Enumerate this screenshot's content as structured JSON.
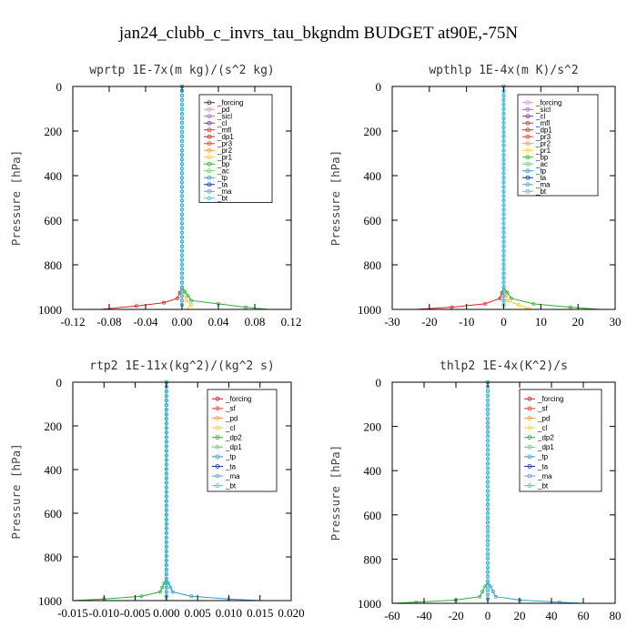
{
  "figure": {
    "title": "jan24_clubb_c_invrs_tau_bkgndm  BUDGET at90E,-75N"
  },
  "chart_data": [
    {
      "type": "line",
      "title": "wprtp  1E-7x(m kg)/(s^2 kg)",
      "ylabel": "Pressure [hPa]",
      "xlim": [
        -0.12,
        0.12
      ],
      "ylim": [
        1000,
        0
      ],
      "xticks": [
        "-0.12",
        "-0.08",
        "-0.04",
        "0.00",
        "0.04",
        "0.08",
        "0.12"
      ],
      "yticks": [
        "0",
        "200",
        "400",
        "600",
        "800",
        "1000"
      ],
      "legend_position": "top-right",
      "series": [
        {
          "name": "_forcing",
          "color": "#333333",
          "pressure": [
            0,
            900,
            960,
            980,
            1000
          ],
          "values": [
            0,
            0,
            0,
            0,
            0
          ]
        },
        {
          "name": "_pd",
          "color": "#cc99cc",
          "pressure": [
            0,
            900,
            1000
          ],
          "values": [
            0,
            0,
            0
          ]
        },
        {
          "name": "_sicl",
          "color": "#9966cc",
          "pressure": [
            0,
            900,
            1000
          ],
          "values": [
            0,
            0,
            0
          ]
        },
        {
          "name": "_cl",
          "color": "#663399",
          "pressure": [
            0,
            900,
            1000
          ],
          "values": [
            0,
            0,
            0
          ]
        },
        {
          "name": "_mfl",
          "color": "#cc3333",
          "pressure": [
            0,
            900,
            1000
          ],
          "values": [
            0,
            0,
            0
          ]
        },
        {
          "name": "_dp1",
          "color": "#dd2222",
          "pressure": [
            0,
            900,
            950,
            970,
            985,
            1000
          ],
          "values": [
            0,
            0,
            -0.005,
            -0.02,
            -0.05,
            -0.09
          ]
        },
        {
          "name": "_pr3",
          "color": "#ff3333",
          "pressure": [
            0,
            900,
            1000
          ],
          "values": [
            0,
            0,
            0
          ]
        },
        {
          "name": "_pr2",
          "color": "#ff9933",
          "pressure": [
            0,
            900,
            1000
          ],
          "values": [
            0,
            0,
            0
          ]
        },
        {
          "name": "_pr1",
          "color": "#ffcc33",
          "pressure": [
            0,
            900,
            960,
            980,
            1000
          ],
          "values": [
            0,
            0,
            0.005,
            0.01,
            0.005
          ]
        },
        {
          "name": "_bp",
          "color": "#33aa33",
          "pressure": [
            0,
            900,
            960,
            975,
            990,
            1000
          ],
          "values": [
            0,
            0,
            0.01,
            0.04,
            0.07,
            0.095
          ]
        },
        {
          "name": "_ac",
          "color": "#66cc66",
          "pressure": [
            0,
            900,
            1000
          ],
          "values": [
            0,
            0,
            0
          ]
        },
        {
          "name": "_tp",
          "color": "#3399cc",
          "pressure": [
            0,
            900,
            1000
          ],
          "values": [
            0,
            0,
            0
          ]
        },
        {
          "name": "_ta",
          "color": "#1133aa",
          "pressure": [
            0,
            900,
            1000
          ],
          "values": [
            0,
            0,
            0
          ]
        },
        {
          "name": "_ma",
          "color": "#6699cc",
          "pressure": [
            0,
            900,
            1000
          ],
          "values": [
            0,
            0,
            0
          ]
        },
        {
          "name": "_bt",
          "color": "#33ccee",
          "pressure": [
            0,
            900,
            1000
          ],
          "values": [
            0,
            0,
            0
          ]
        }
      ]
    },
    {
      "type": "line",
      "title": "wpthlp  1E-4x(m K)/s^2",
      "ylabel": "Pressure [hPa]",
      "xlim": [
        -30,
        30
      ],
      "ylim": [
        1000,
        0
      ],
      "xticks": [
        "-30",
        "-20",
        "-10",
        "0",
        "10",
        "20",
        "30"
      ],
      "yticks": [
        "0",
        "200",
        "400",
        "600",
        "800",
        "1000"
      ],
      "legend_position": "top-right",
      "series": [
        {
          "name": "_forcing",
          "color": "#cc99cc",
          "pressure": [
            0,
            900,
            1000
          ],
          "values": [
            0,
            0,
            0
          ]
        },
        {
          "name": "_sicl",
          "color": "#9966cc",
          "pressure": [
            0,
            900,
            1000
          ],
          "values": [
            0,
            0,
            0
          ]
        },
        {
          "name": "_cl",
          "color": "#663399",
          "pressure": [
            0,
            900,
            1000
          ],
          "values": [
            0,
            0,
            0
          ]
        },
        {
          "name": "_mfl",
          "color": "#cc3333",
          "pressure": [
            0,
            900,
            1000
          ],
          "values": [
            0,
            0,
            0
          ]
        },
        {
          "name": "_dp1",
          "color": "#dd2222",
          "pressure": [
            0,
            900,
            950,
            975,
            990,
            1000
          ],
          "values": [
            0,
            0,
            -1,
            -5,
            -14,
            -24
          ]
        },
        {
          "name": "_pr3",
          "color": "#ff3333",
          "pressure": [
            0,
            900,
            1000
          ],
          "values": [
            0,
            0,
            0
          ]
        },
        {
          "name": "_pr2",
          "color": "#ff9933",
          "pressure": [
            0,
            900,
            1000
          ],
          "values": [
            0,
            0,
            0
          ]
        },
        {
          "name": "_pr1",
          "color": "#ffcc33",
          "pressure": [
            0,
            900,
            960,
            980,
            995,
            1000
          ],
          "values": [
            0,
            0,
            1,
            4,
            7,
            5
          ]
        },
        {
          "name": "_bp",
          "color": "#33aa33",
          "pressure": [
            0,
            900,
            950,
            975,
            990,
            1000
          ],
          "values": [
            0,
            0,
            2,
            8,
            18,
            26
          ]
        },
        {
          "name": "_ac",
          "color": "#66cc66",
          "pressure": [
            0,
            900,
            1000
          ],
          "values": [
            0,
            0,
            0
          ]
        },
        {
          "name": "_tp",
          "color": "#3399cc",
          "pressure": [
            0,
            900,
            1000
          ],
          "values": [
            0,
            0,
            0
          ]
        },
        {
          "name": "_ta",
          "color": "#1133aa",
          "pressure": [
            0,
            900,
            1000
          ],
          "values": [
            0,
            0,
            0
          ]
        },
        {
          "name": "_ma",
          "color": "#6699cc",
          "pressure": [
            0,
            900,
            1000
          ],
          "values": [
            0,
            0,
            0
          ]
        },
        {
          "name": "_bt",
          "color": "#33ccee",
          "pressure": [
            0,
            900,
            1000
          ],
          "values": [
            0,
            0,
            0
          ]
        }
      ]
    },
    {
      "type": "line",
      "title": "rtp2  1E-11x(kg^2)/(kg^2 s)",
      "ylabel": "Pressure [hPa]",
      "xlim": [
        -0.015,
        0.02
      ],
      "ylim": [
        1000,
        0
      ],
      "xticks": [
        "-0.015",
        "-0.010",
        "-0.005",
        "0.000",
        "0.005",
        "0.010",
        "0.015",
        "0.020"
      ],
      "yticks": [
        "0",
        "200",
        "400",
        "600",
        "800",
        "1000"
      ],
      "legend_position": "top-right",
      "series": [
        {
          "name": "_forcing",
          "color": "#cc2222",
          "pressure": [
            0,
            900,
            1000
          ],
          "values": [
            0,
            0,
            0
          ]
        },
        {
          "name": "_sf",
          "color": "#ee3333",
          "pressure": [
            0,
            900,
            1000
          ],
          "values": [
            0,
            0,
            0
          ]
        },
        {
          "name": "_pd",
          "color": "#ff9933",
          "pressure": [
            0,
            900,
            1000
          ],
          "values": [
            0,
            0,
            0
          ]
        },
        {
          "name": "_cl",
          "color": "#ffcc33",
          "pressure": [
            0,
            900,
            1000
          ],
          "values": [
            0,
            0,
            0
          ]
        },
        {
          "name": "_dp2",
          "color": "#33aa33",
          "pressure": [
            0,
            900,
            960,
            980,
            993,
            1000
          ],
          "values": [
            0,
            0,
            -0.001,
            -0.004,
            -0.01,
            -0.015
          ]
        },
        {
          "name": "_dp1",
          "color": "#66cc66",
          "pressure": [
            0,
            900,
            1000
          ],
          "values": [
            0,
            0,
            0
          ]
        },
        {
          "name": "_tp",
          "color": "#3399cc",
          "pressure": [
            0,
            900,
            960,
            980,
            993,
            1000
          ],
          "values": [
            0,
            0,
            0.001,
            0.004,
            0.01,
            0.015
          ]
        },
        {
          "name": "_ta",
          "color": "#1133aa",
          "pressure": [
            0,
            900,
            1000
          ],
          "values": [
            0,
            0,
            0
          ]
        },
        {
          "name": "_ma",
          "color": "#6699cc",
          "pressure": [
            0,
            900,
            1000
          ],
          "values": [
            0,
            0,
            0
          ]
        },
        {
          "name": "_bt",
          "color": "#33ccee",
          "pressure": [
            0,
            900,
            1000
          ],
          "values": [
            0,
            0,
            0
          ]
        }
      ]
    },
    {
      "type": "line",
      "title": "thlp2  1E-4x(K^2)/s",
      "ylabel": "Pressure [hPa]",
      "xlim": [
        -60,
        80
      ],
      "ylim": [
        1000,
        0
      ],
      "xticks": [
        "-60",
        "-40",
        "-20",
        "0",
        "20",
        "40",
        "60",
        "80"
      ],
      "yticks": [
        "0",
        "200",
        "400",
        "600",
        "800",
        "1000"
      ],
      "legend_position": "top-right",
      "series": [
        {
          "name": "_forcing",
          "color": "#cc2222",
          "pressure": [
            0,
            900,
            1000
          ],
          "values": [
            0,
            0,
            0
          ]
        },
        {
          "name": "_sf",
          "color": "#ee3333",
          "pressure": [
            0,
            900,
            1000
          ],
          "values": [
            0,
            0,
            0
          ]
        },
        {
          "name": "_pd",
          "color": "#ff9933",
          "pressure": [
            0,
            900,
            1000
          ],
          "values": [
            0,
            0,
            0
          ]
        },
        {
          "name": "_cl",
          "color": "#ffcc33",
          "pressure": [
            0,
            900,
            1000
          ],
          "values": [
            0,
            0,
            0
          ]
        },
        {
          "name": "_dp2",
          "color": "#33aa33",
          "pressure": [
            0,
            900,
            970,
            985,
            995,
            1000
          ],
          "values": [
            0,
            0,
            -5,
            -20,
            -45,
            -60
          ]
        },
        {
          "name": "_dp1",
          "color": "#66cc66",
          "pressure": [
            0,
            900,
            1000
          ],
          "values": [
            0,
            0,
            0
          ]
        },
        {
          "name": "_tp",
          "color": "#3399cc",
          "pressure": [
            0,
            900,
            970,
            985,
            995,
            1000
          ],
          "values": [
            0,
            0,
            5,
            20,
            45,
            60
          ]
        },
        {
          "name": "_ta",
          "color": "#1133aa",
          "pressure": [
            0,
            900,
            1000
          ],
          "values": [
            0,
            0,
            0
          ]
        },
        {
          "name": "_ma",
          "color": "#6699cc",
          "pressure": [
            0,
            900,
            1000
          ],
          "values": [
            0,
            0,
            0
          ]
        },
        {
          "name": "_bt",
          "color": "#33ccee",
          "pressure": [
            0,
            900,
            1000
          ],
          "values": [
            0,
            0,
            0
          ]
        }
      ]
    }
  ]
}
